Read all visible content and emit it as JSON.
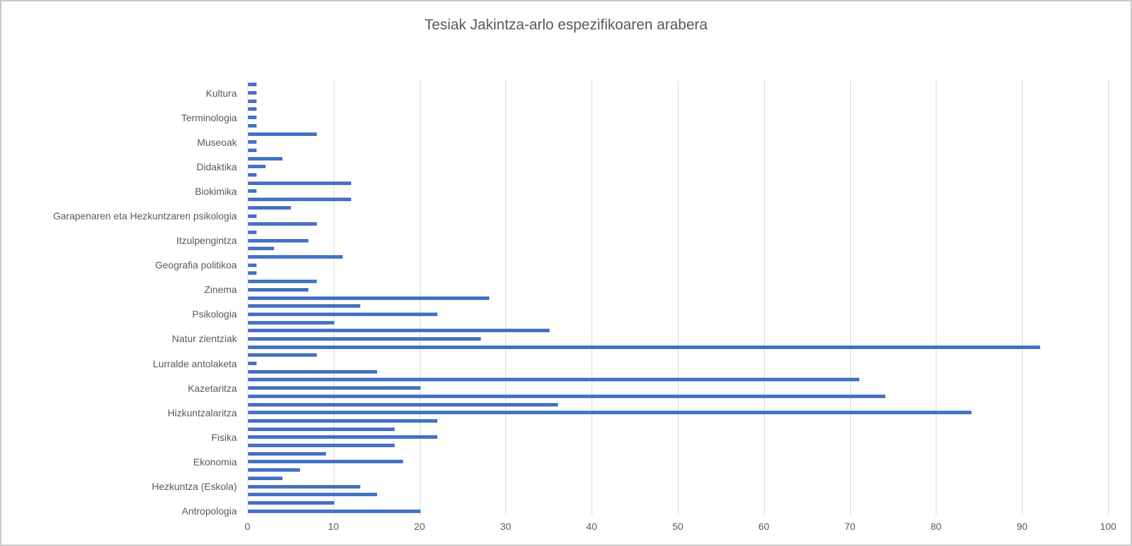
{
  "title": "Tesiak Jakintza-arlo espezifikoaren arabera",
  "colors": {
    "bar": "#4472C4",
    "gridline": "#D9D9D9",
    "axis_text": "#595959",
    "title_text": "#595959",
    "chart_border": "#C9C9C9"
  },
  "chart_data": {
    "type": "bar",
    "orientation": "horizontal",
    "title": "Tesiak Jakintza-arlo espezifikoaren arabera",
    "xlabel": "",
    "ylabel": "",
    "xlim": [
      0,
      100
    ],
    "xticks": [
      0,
      10,
      20,
      30,
      40,
      50,
      60,
      70,
      80,
      90,
      100
    ],
    "grid": true,
    "legend": false,
    "note": "53 thin bars top-to-bottom; category labels shown only on every 3rd row",
    "rows": [
      {
        "label": "",
        "value": 1
      },
      {
        "label": "Kultura",
        "value": 1
      },
      {
        "label": "",
        "value": 1
      },
      {
        "label": "",
        "value": 1
      },
      {
        "label": "Terminologia",
        "value": 1
      },
      {
        "label": "",
        "value": 1
      },
      {
        "label": "",
        "value": 8
      },
      {
        "label": "Museoak",
        "value": 1
      },
      {
        "label": "",
        "value": 1
      },
      {
        "label": "",
        "value": 4
      },
      {
        "label": "Didaktika",
        "value": 2
      },
      {
        "label": "",
        "value": 1
      },
      {
        "label": "",
        "value": 12
      },
      {
        "label": "Biokimika",
        "value": 1
      },
      {
        "label": "",
        "value": 12
      },
      {
        "label": "",
        "value": 5
      },
      {
        "label": "Garapenaren eta Hezkuntzaren psikologia",
        "value": 1
      },
      {
        "label": "",
        "value": 8
      },
      {
        "label": "",
        "value": 1
      },
      {
        "label": "Itzulpengintza",
        "value": 7
      },
      {
        "label": "",
        "value": 3
      },
      {
        "label": "",
        "value": 11
      },
      {
        "label": "Geografia politikoa",
        "value": 1
      },
      {
        "label": "",
        "value": 1
      },
      {
        "label": "",
        "value": 8
      },
      {
        "label": "Zinema",
        "value": 7
      },
      {
        "label": "",
        "value": 28
      },
      {
        "label": "",
        "value": 13
      },
      {
        "label": "Psikologia",
        "value": 22
      },
      {
        "label": "",
        "value": 10
      },
      {
        "label": "",
        "value": 35
      },
      {
        "label": "Natur zientziak",
        "value": 27
      },
      {
        "label": "",
        "value": 92
      },
      {
        "label": "",
        "value": 8
      },
      {
        "label": "Lurralde antolaketa",
        "value": 1
      },
      {
        "label": "",
        "value": 15
      },
      {
        "label": "",
        "value": 71
      },
      {
        "label": "Kazetaritza",
        "value": 20
      },
      {
        "label": "",
        "value": 74
      },
      {
        "label": "",
        "value": 36
      },
      {
        "label": "Hizkuntzalaritza",
        "value": 84
      },
      {
        "label": "",
        "value": 22
      },
      {
        "label": "",
        "value": 17
      },
      {
        "label": "Fisika",
        "value": 22
      },
      {
        "label": "",
        "value": 17
      },
      {
        "label": "",
        "value": 9
      },
      {
        "label": "Ekonomia",
        "value": 18
      },
      {
        "label": "",
        "value": 6
      },
      {
        "label": "",
        "value": 4
      },
      {
        "label": "Hezkuntza (Eskola)",
        "value": 13
      },
      {
        "label": "",
        "value": 15
      },
      {
        "label": "",
        "value": 10
      },
      {
        "label": "Antropologia",
        "value": 20
      }
    ]
  }
}
